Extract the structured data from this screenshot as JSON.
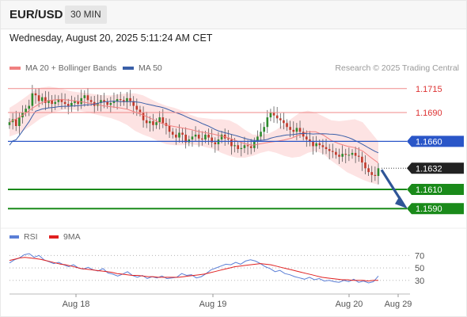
{
  "header": {
    "pair": "EUR/USD",
    "timeframe": "30 MIN",
    "datetime": "Wednesday, August 20, 2025 5:11:24 AM CET"
  },
  "legend": {
    "ma20_label": "MA 20 + Bollinger Bands",
    "ma50_label": "MA 50",
    "research": "Research © 2025 Trading Central",
    "rsi_label": "RSI",
    "rsi_ma_label": "9MA"
  },
  "colors": {
    "ma20": "#f08080",
    "ma50": "#3a5fa8",
    "bollinger_fill": "#fddede",
    "resistance": "#f08a8a",
    "pivot": "#2a56c8",
    "support": "#1a8a1a",
    "current": "#222222",
    "candle_up": "#2e8b2e",
    "candle_down": "#c0392b",
    "rsi_line": "#5b7fd6",
    "rsi_ma": "#e02020",
    "arrow": "#2f5597"
  },
  "chart_data": [
    {
      "type": "candlestick",
      "title": "EUR/USD",
      "timeframe": "30 MIN",
      "x_ticks": [
        "Aug 18",
        "Aug 19",
        "Aug 20",
        "Aug 29"
      ],
      "y_range": [
        1.1572,
        1.1728
      ],
      "levels": [
        {
          "value": 1.1715,
          "label": "1.1715",
          "kind": "resistance"
        },
        {
          "value": 1.169,
          "label": "1.1690",
          "kind": "resistance"
        },
        {
          "value": 1.166,
          "label": "1.1660",
          "kind": "pivot"
        },
        {
          "value": 1.1632,
          "label": "1.1632",
          "kind": "current"
        },
        {
          "value": 1.161,
          "label": "1.1610",
          "kind": "support"
        },
        {
          "value": 1.159,
          "label": "1.1590",
          "kind": "support"
        }
      ],
      "closes": [
        1.168,
        1.1683,
        1.1676,
        1.1685,
        1.169,
        1.1694,
        1.1697,
        1.171,
        1.1708,
        1.1702,
        1.1706,
        1.17,
        1.1703,
        1.1699,
        1.1701,
        1.1704,
        1.1701,
        1.1699,
        1.1697,
        1.17,
        1.1702,
        1.1699,
        1.1705,
        1.1708,
        1.1703,
        1.1701,
        1.1697,
        1.17,
        1.1703,
        1.1701,
        1.1698,
        1.17,
        1.1702,
        1.1704,
        1.1703,
        1.1701,
        1.1705,
        1.1702,
        1.1697,
        1.1693,
        1.169,
        1.1682,
        1.1679,
        1.1681,
        1.1677,
        1.168,
        1.1685,
        1.1679,
        1.1676,
        1.167,
        1.1667,
        1.1664,
        1.1669,
        1.1667,
        1.1659,
        1.1662,
        1.1665,
        1.1667,
        1.1663,
        1.1662,
        1.1667,
        1.1664,
        1.1659,
        1.1657,
        1.1662,
        1.1667,
        1.1663,
        1.1662,
        1.1655,
        1.1656,
        1.1652,
        1.1653,
        1.1656,
        1.1655,
        1.1653,
        1.166,
        1.1665,
        1.167,
        1.1675,
        1.1685,
        1.169,
        1.1687,
        1.1684,
        1.1682,
        1.1679,
        1.1675,
        1.1672,
        1.167,
        1.1674,
        1.167,
        1.1665,
        1.1662,
        1.166,
        1.1655,
        1.1658,
        1.1656,
        1.1654,
        1.1652,
        1.165,
        1.1649,
        1.1646,
        1.1644,
        1.1647,
        1.1646,
        1.1646,
        1.1648,
        1.1645,
        1.1644,
        1.1638,
        1.1632,
        1.1628,
        1.1625,
        1.1624,
        1.1632
      ],
      "bollinger": {
        "upper": [
          1.1695,
          1.17,
          1.1706,
          1.1712,
          1.1716,
          1.1717,
          1.1716,
          1.1714,
          1.1712,
          1.1711,
          1.171,
          1.1709,
          1.1708,
          1.1708,
          1.1709,
          1.171,
          1.171,
          1.1708,
          1.1704,
          1.17,
          1.1697,
          1.1695,
          1.1692,
          1.1688,
          1.1685,
          1.1684,
          1.1683,
          1.1683,
          1.1682,
          1.1678,
          1.1672,
          1.1667,
          1.1667,
          1.1668,
          1.1672,
          1.1678,
          1.1684,
          1.169,
          1.1692,
          1.169,
          1.1686,
          1.1682,
          1.1681,
          1.1682,
          1.1683,
          1.168,
          1.167,
          1.166
        ],
        "lower": [
          1.1665,
          1.1668,
          1.1672,
          1.1678,
          1.1684,
          1.1688,
          1.1691,
          1.1693,
          1.1693,
          1.1692,
          1.169,
          1.1688,
          1.1686,
          1.1684,
          1.1681,
          1.1677,
          1.1671,
          1.1667,
          1.1664,
          1.166,
          1.1657,
          1.1656,
          1.1656,
          1.1657,
          1.1656,
          1.1654,
          1.1652,
          1.1648,
          1.1645,
          1.1643,
          1.1643,
          1.1645,
          1.1648,
          1.165,
          1.1648,
          1.1645,
          1.1643,
          1.1644,
          1.1648,
          1.165,
          1.1647,
          1.164,
          1.1634,
          1.1628,
          1.1624,
          1.162,
          1.1617,
          1.1615
        ]
      }
    },
    {
      "type": "line",
      "title": "RSI",
      "series_names": [
        "RSI",
        "9MA"
      ],
      "y_ticks": [
        70,
        50,
        30
      ],
      "y_range": [
        12,
        92
      ],
      "rsi": [
        58,
        63,
        66,
        71,
        73,
        67,
        70,
        63,
        60,
        57,
        59,
        55,
        52,
        55,
        50,
        48,
        51,
        47,
        45,
        49,
        42,
        40,
        37,
        40,
        44,
        38,
        35,
        38,
        33,
        36,
        34,
        37,
        33,
        34,
        35,
        41,
        38,
        39,
        34,
        36,
        41,
        47,
        50,
        53,
        56,
        55,
        59,
        56,
        61,
        63,
        61,
        57,
        52,
        49,
        44,
        46,
        41,
        39,
        36,
        34,
        32,
        35,
        31,
        33,
        29,
        30,
        28,
        27,
        30,
        28,
        32,
        27,
        29,
        26,
        28,
        37
      ],
      "rsi_ma": [
        62,
        64,
        66,
        67,
        66,
        65,
        64,
        62,
        60,
        58,
        56,
        55,
        53,
        51,
        49,
        48,
        47,
        46,
        45,
        44,
        43,
        41,
        40,
        39,
        38,
        38,
        37,
        36,
        36,
        35,
        35,
        35,
        35,
        35,
        36,
        37,
        38,
        39,
        40,
        42,
        44,
        46,
        48,
        50,
        52,
        53,
        54,
        55,
        56,
        57,
        56,
        55,
        53,
        51,
        49,
        47,
        45,
        43,
        41,
        39,
        37,
        35,
        34,
        33,
        32,
        31,
        31,
        30,
        30,
        30,
        29,
        30,
        30
      ]
    }
  ]
}
